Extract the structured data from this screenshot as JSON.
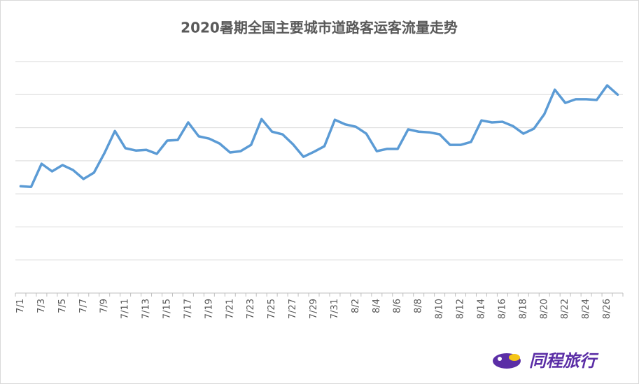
{
  "chart_data": {
    "type": "line",
    "title": "2020暑期全国主要城市道路客运客流量走势",
    "categories": [
      "7/1",
      null,
      "7/3",
      null,
      "7/5",
      null,
      "7/7",
      null,
      "7/9",
      null,
      "7/11",
      null,
      "7/13",
      null,
      "7/15",
      null,
      "7/17",
      null,
      "7/19",
      null,
      "7/21",
      null,
      "7/23",
      null,
      "7/25",
      null,
      "7/27",
      null,
      "7/29",
      null,
      "7/31",
      null,
      "8/2",
      null,
      "8/4",
      null,
      "8/6",
      null,
      "8/8",
      null,
      "8/10",
      null,
      "8/12",
      null,
      "8/14",
      null,
      "8/16",
      null,
      "8/18",
      null,
      "8/20",
      null,
      "8/22",
      null,
      "8/24",
      null,
      "8/26",
      null
    ],
    "series": [
      {
        "color": "#5b9bd5",
        "values": [
          3.23,
          3.21,
          3.91,
          3.68,
          3.87,
          3.72,
          3.45,
          3.64,
          4.23,
          4.9,
          4.38,
          4.31,
          4.33,
          4.21,
          4.61,
          4.63,
          5.16,
          4.74,
          4.67,
          4.52,
          4.25,
          4.29,
          4.48,
          5.26,
          4.88,
          4.8,
          4.5,
          4.12,
          4.27,
          4.44,
          5.24,
          5.1,
          5.03,
          4.82,
          4.29,
          4.36,
          4.36,
          4.95,
          4.88,
          4.86,
          4.8,
          4.48,
          4.48,
          4.57,
          5.22,
          5.16,
          5.18,
          5.05,
          4.82,
          4.97,
          5.41,
          6.15,
          5.75,
          5.86,
          5.86,
          5.84,
          6.28,
          6.0
        ]
      }
    ],
    "ylim": [
      0,
      7
    ],
    "yticks": [
      0,
      1,
      2,
      3,
      4,
      5,
      6,
      7
    ],
    "grid": true,
    "ytick_labels": false,
    "brand": "同程旅行"
  }
}
